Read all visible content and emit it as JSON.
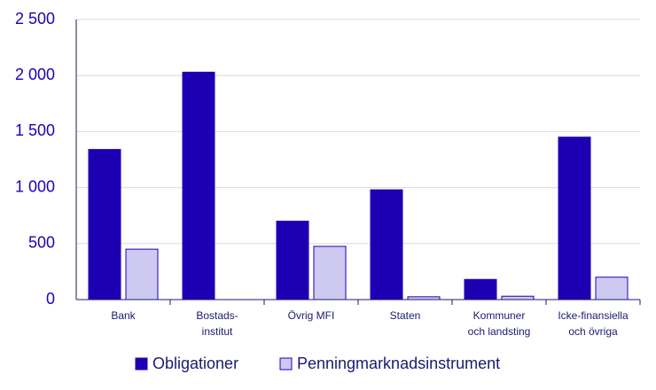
{
  "chart_data": {
    "type": "bar",
    "categories": [
      [
        "Bank"
      ],
      [
        "Bostads-",
        "institut"
      ],
      [
        "Övrig MFI"
      ],
      [
        "Staten"
      ],
      [
        "Kommuner",
        "och landsting"
      ],
      [
        "Icke-finansiella",
        "och övriga"
      ]
    ],
    "series": [
      {
        "name": "Obligationer",
        "color": "#1e00b4",
        "values": [
          1340,
          2030,
          700,
          980,
          180,
          1450
        ]
      },
      {
        "name": "Penningmarknadsinstrument",
        "color": "#cdc9f1",
        "values": [
          450,
          0,
          475,
          25,
          30,
          200
        ]
      }
    ],
    "ylim": [
      0,
      2500
    ],
    "yticks": [
      0,
      500,
      {
        "value": 1000,
        "label": "1 000"
      },
      {
        "value": 1500,
        "label": "1 500"
      },
      {
        "value": 2000,
        "label": "2 000"
      },
      {
        "value": 2500,
        "label": "2 500"
      }
    ],
    "grid": true
  }
}
